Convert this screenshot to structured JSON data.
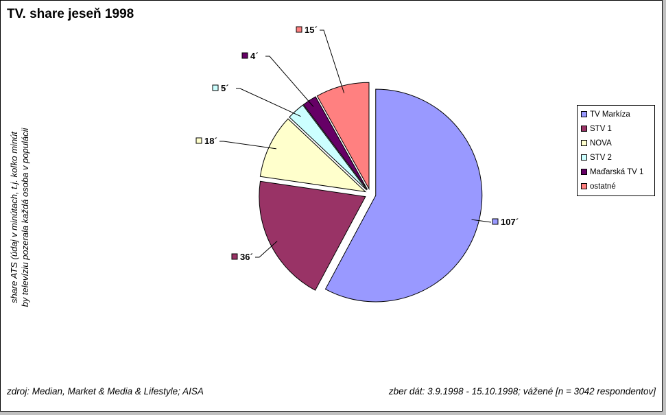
{
  "title": "TV. share jeseň 1998",
  "ylabel_lines": [
    "share ATS (údaj v minútach, t.j. koľko minút",
    "by televíziu pozerala každá osoba v populácii"
  ],
  "source": "zdroj: Median, Market & Media & Lifestyle; AISA",
  "period": "zber dát: 3.9.1998 - 15.10.1998; vážené [n = 3042 respondentov]",
  "chart_data": {
    "type": "pie",
    "title": "TV. share jeseň 1998",
    "categories": [
      "TV Markíza",
      "STV 1",
      "NOVA",
      "STV 2",
      "Maďarská TV 1",
      "ostatné"
    ],
    "values": [
      107,
      36,
      18,
      5,
      4,
      15
    ],
    "labels": [
      "107´",
      "36´",
      "18´",
      "5´",
      "4´",
      "15´"
    ],
    "colors": [
      "#9999ff",
      "#993366",
      "#ffffcc",
      "#ccffff",
      "#660066",
      "#ff8080"
    ],
    "exploded": true,
    "legend_position": "right"
  }
}
